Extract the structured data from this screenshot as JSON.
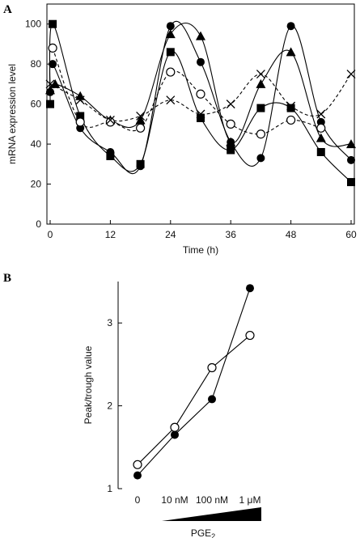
{
  "chart_data": [
    {
      "panel": "A",
      "type": "line",
      "title": "",
      "xlabel": "Time (h)",
      "ylabel": "mRNA expression level",
      "xlim": [
        0,
        60
      ],
      "ylim": [
        0,
        110
      ],
      "xticks": [
        0,
        12,
        24,
        36,
        48,
        60
      ],
      "yticks": [
        0,
        20,
        40,
        60,
        80,
        100
      ],
      "grid": false,
      "series": [
        {
          "marker": "filled-square",
          "line": "solid",
          "points": [
            [
              0,
              60
            ],
            [
              0.5,
              100
            ],
            [
              6,
              54
            ],
            [
              12,
              34
            ],
            [
              18,
              30
            ],
            [
              24,
              86
            ],
            [
              30,
              53
            ],
            [
              36,
              37
            ],
            [
              42,
              58
            ],
            [
              48,
              58
            ],
            [
              54,
              36
            ],
            [
              60,
              21
            ]
          ]
        },
        {
          "marker": "filled-circle",
          "line": "solid",
          "points": [
            [
              0,
              66
            ],
            [
              0.5,
              80
            ],
            [
              6,
              48
            ],
            [
              12,
              36
            ],
            [
              18,
              29
            ],
            [
              24,
              99
            ],
            [
              30,
              81
            ],
            [
              36,
              41
            ],
            [
              42,
              33
            ],
            [
              48,
              99
            ],
            [
              54,
              51
            ],
            [
              60,
              32
            ]
          ]
        },
        {
          "marker": "filled-triangle",
          "line": "solid",
          "points": [
            [
              0,
              67
            ],
            [
              1,
              70
            ],
            [
              6,
              64
            ],
            [
              12,
              52
            ],
            [
              18,
              52
            ],
            [
              24,
              95
            ],
            [
              30,
              94
            ],
            [
              36,
              41
            ],
            [
              42,
              70
            ],
            [
              48,
              86
            ],
            [
              54,
              43
            ],
            [
              60,
              40
            ]
          ]
        },
        {
          "marker": "open-circle",
          "line": "dashed",
          "points": [
            [
              0.5,
              88
            ],
            [
              6,
              51
            ],
            [
              12,
              51
            ],
            [
              18,
              48
            ],
            [
              24,
              76
            ],
            [
              30,
              65
            ],
            [
              36,
              50
            ],
            [
              42,
              45
            ],
            [
              48,
              52
            ],
            [
              54,
              48
            ]
          ]
        },
        {
          "marker": "cross",
          "line": "dashed",
          "points": [
            [
              0,
              70
            ],
            [
              6,
              62
            ],
            [
              12,
              52
            ],
            [
              18,
              54
            ],
            [
              24,
              62
            ],
            [
              30,
              55
            ],
            [
              36,
              60
            ],
            [
              42,
              75
            ],
            [
              48,
              59
            ],
            [
              54,
              55
            ],
            [
              60,
              75
            ]
          ]
        }
      ]
    },
    {
      "panel": "B",
      "type": "line",
      "title": "",
      "xlabel": "PGE",
      "xlabel_sub": "2",
      "ylabel": "Peak/trough value",
      "categories": [
        "0",
        "10 nM",
        "100 nM",
        "1 μM"
      ],
      "yticks": [
        1,
        2,
        3
      ],
      "ylim": [
        1,
        3.5
      ],
      "grid": false,
      "series": [
        {
          "marker": "filled-circle",
          "values": [
            1.16,
            1.65,
            2.08,
            3.42
          ]
        },
        {
          "marker": "open-circle",
          "values": [
            1.29,
            1.74,
            2.46,
            2.85
          ]
        }
      ],
      "gradient_wedge": true
    }
  ]
}
